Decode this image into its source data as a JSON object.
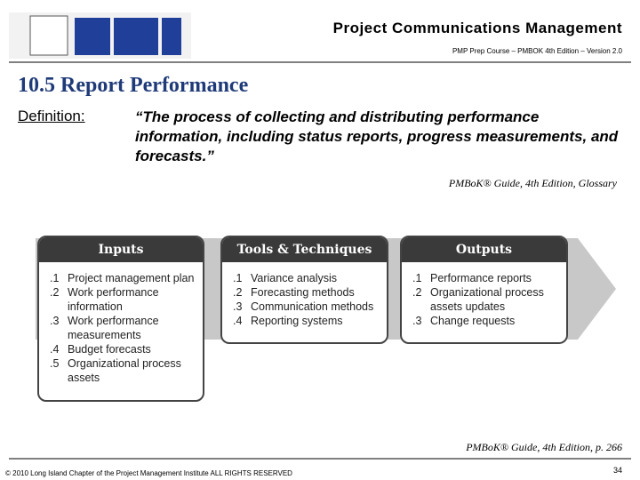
{
  "header": {
    "title": "Project Communications Management",
    "subtitle": "PMP Prep Course – PMBOK 4th Edition – Version 2.0"
  },
  "slide": {
    "heading": "10.5 Report Performance",
    "definition_label": "Definition:",
    "definition": "“The process of collecting and distributing performance information, including status reports, progress measurements, and forecasts.”",
    "source": "PMBoK® Guide, 4th Edition, Glossary",
    "citation": "PMBoK® Guide, 4th Edition, p. 266"
  },
  "process": [
    {
      "title": "Inputs",
      "items": [
        {
          "number": ".1",
          "text": "Project management plan"
        },
        {
          "number": ".2",
          "text": "Work performance information"
        },
        {
          "number": ".3",
          "text": "Work performance measurements"
        },
        {
          "number": ".4",
          "text": "Budget forecasts"
        },
        {
          "number": ".5",
          "text": "Organizational process assets"
        }
      ]
    },
    {
      "title": "Tools & Techniques",
      "items": [
        {
          "number": ".1",
          "text": "Variance analysis"
        },
        {
          "number": ".2",
          "text": "Forecasting methods"
        },
        {
          "number": ".3",
          "text": "Communication methods"
        },
        {
          "number": ".4",
          "text": "Reporting systems"
        }
      ]
    },
    {
      "title": "Outputs",
      "items": [
        {
          "number": ".1",
          "text": "Performance reports"
        },
        {
          "number": ".2",
          "text": "Organizational process assets updates"
        },
        {
          "number": ".3",
          "text": "Change requests"
        }
      ]
    }
  ],
  "footer": {
    "copyright": "© 2010 Long Island Chapter of the Project Management Institute ALL RIGHTS RESERVED",
    "page_number": "34"
  }
}
